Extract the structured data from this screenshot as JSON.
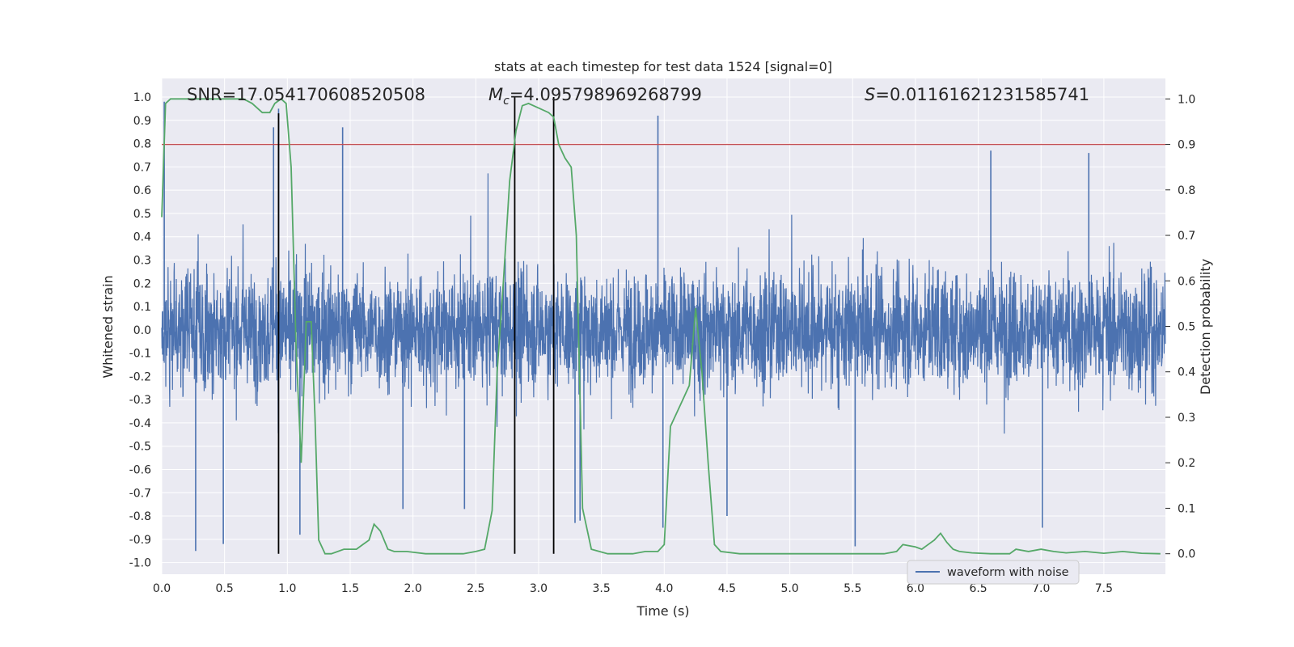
{
  "chart_data": {
    "type": "line",
    "title": "stats at each timestep for test data 1524 [signal=0]",
    "xlabel": "Time (s)",
    "ylabel_left": "Whitened strain",
    "ylabel_right": "Detection probability",
    "xlim": [
      0.0,
      7.99
    ],
    "ylim_left": [
      -1.05,
      1.08
    ],
    "ylim_right": [
      -0.045,
      1.045
    ],
    "x_ticks": [
      "0.0",
      "0.5",
      "1.0",
      "1.5",
      "2.0",
      "2.5",
      "3.0",
      "3.5",
      "4.0",
      "4.5",
      "5.0",
      "5.5",
      "6.0",
      "6.5",
      "7.0",
      "7.5"
    ],
    "y_left_ticks": [
      "1.0",
      "0.9",
      "0.8",
      "0.7",
      "0.6",
      "0.5",
      "0.4",
      "0.3",
      "0.2",
      "0.1",
      "0.0",
      "-0.1",
      "-0.2",
      "-0.3",
      "-0.4",
      "-0.5",
      "-0.6",
      "-0.7",
      "-0.8",
      "-0.9",
      "-1.0"
    ],
    "y_right_ticks": [
      "1.0",
      "0.9",
      "0.8",
      "0.7",
      "0.6",
      "0.5",
      "0.4",
      "0.3",
      "0.2",
      "0.1",
      "0.0"
    ],
    "grid": true,
    "annotations": {
      "snr": "SNR=17.054170608520508",
      "mc_symbol": "M",
      "mc_sub": "c",
      "mc_value": "=4.095798969268799",
      "s_symbol": "S",
      "s_value": "=0.01161621231585741"
    },
    "threshold_line": {
      "y_right": 0.9,
      "color": "#c44e52"
    },
    "vertical_lines": [
      {
        "x": 0.93,
        "y_left_top": 0.93
      },
      {
        "x": 2.81,
        "y_left_top": 1.0
      },
      {
        "x": 3.12,
        "y_left_top": 1.0
      }
    ],
    "series": [
      {
        "name": "waveform with noise",
        "axis": "left",
        "color": "#4c72b0",
        "kind": "noise",
        "typical_amplitude": 0.28,
        "peaks": [
          {
            "x": 0.02,
            "y": 0.98
          },
          {
            "x": 0.27,
            "y": -0.95
          },
          {
            "x": 0.49,
            "y": -0.92
          },
          {
            "x": 0.89,
            "y": 0.87
          },
          {
            "x": 0.93,
            "y": 0.95
          },
          {
            "x": 1.1,
            "y": -0.88
          },
          {
            "x": 1.44,
            "y": 0.87
          },
          {
            "x": 1.92,
            "y": -0.77
          },
          {
            "x": 2.41,
            "y": -0.77
          },
          {
            "x": 3.29,
            "y": -0.83
          },
          {
            "x": 3.33,
            "y": -0.82
          },
          {
            "x": 3.95,
            "y": 0.92
          },
          {
            "x": 3.99,
            "y": -0.85
          },
          {
            "x": 4.5,
            "y": -0.8
          },
          {
            "x": 5.52,
            "y": -0.93
          },
          {
            "x": 6.6,
            "y": 0.77
          },
          {
            "x": 7.01,
            "y": -0.85
          },
          {
            "x": 7.38,
            "y": 0.76
          }
        ]
      },
      {
        "name": "detection probability",
        "axis": "right",
        "color": "#55a868",
        "x": [
          0.0,
          0.03,
          0.07,
          0.12,
          0.25,
          0.5,
          0.65,
          0.72,
          0.8,
          0.86,
          0.9,
          0.95,
          0.99,
          1.03,
          1.07,
          1.11,
          1.15,
          1.19,
          1.22,
          1.25,
          1.3,
          1.35,
          1.45,
          1.55,
          1.6,
          1.65,
          1.69,
          1.74,
          1.8,
          1.85,
          1.95,
          2.1,
          2.2,
          2.3,
          2.4,
          2.5,
          2.57,
          2.63,
          2.67,
          2.72,
          2.77,
          2.82,
          2.87,
          2.92,
          3.0,
          3.08,
          3.12,
          3.16,
          3.21,
          3.26,
          3.3,
          3.35,
          3.42,
          3.55,
          3.65,
          3.75,
          3.85,
          3.95,
          4.0,
          4.05,
          4.1,
          4.15,
          4.2,
          4.25,
          4.3,
          4.35,
          4.4,
          4.45,
          4.6,
          4.8,
          5.0,
          5.2,
          5.4,
          5.5,
          5.6,
          5.75,
          5.85,
          5.9,
          6.0,
          6.05,
          6.15,
          6.2,
          6.25,
          6.3,
          6.35,
          6.45,
          6.6,
          6.75,
          6.8,
          6.9,
          7.0,
          7.1,
          7.2,
          7.35,
          7.5,
          7.65,
          7.8,
          7.95
        ],
        "y": [
          0.74,
          0.99,
          1.0,
          1.0,
          1.0,
          1.0,
          1.0,
          0.99,
          0.97,
          0.97,
          0.99,
          1.0,
          0.99,
          0.85,
          0.45,
          0.2,
          0.51,
          0.51,
          0.3,
          0.03,
          0.0,
          0.0,
          0.01,
          0.01,
          0.02,
          0.03,
          0.065,
          0.05,
          0.01,
          0.005,
          0.005,
          0.0,
          0.0,
          0.0,
          0.0,
          0.005,
          0.01,
          0.095,
          0.4,
          0.6,
          0.82,
          0.93,
          0.985,
          0.99,
          0.98,
          0.97,
          0.96,
          0.9,
          0.87,
          0.85,
          0.7,
          0.1,
          0.01,
          0.0,
          0.0,
          0.0,
          0.005,
          0.005,
          0.02,
          0.28,
          0.31,
          0.34,
          0.37,
          0.54,
          0.4,
          0.2,
          0.02,
          0.005,
          0.0,
          0.0,
          0.0,
          0.0,
          0.0,
          0.0,
          0.0,
          0.0,
          0.005,
          0.02,
          0.015,
          0.01,
          0.03,
          0.045,
          0.025,
          0.01,
          0.005,
          0.002,
          0.0,
          0.0,
          0.01,
          0.005,
          0.01,
          0.005,
          0.002,
          0.005,
          0.001,
          0.005,
          0.001,
          0.0
        ]
      }
    ],
    "legend": {
      "label": "waveform with noise",
      "position": "lower-right"
    }
  }
}
